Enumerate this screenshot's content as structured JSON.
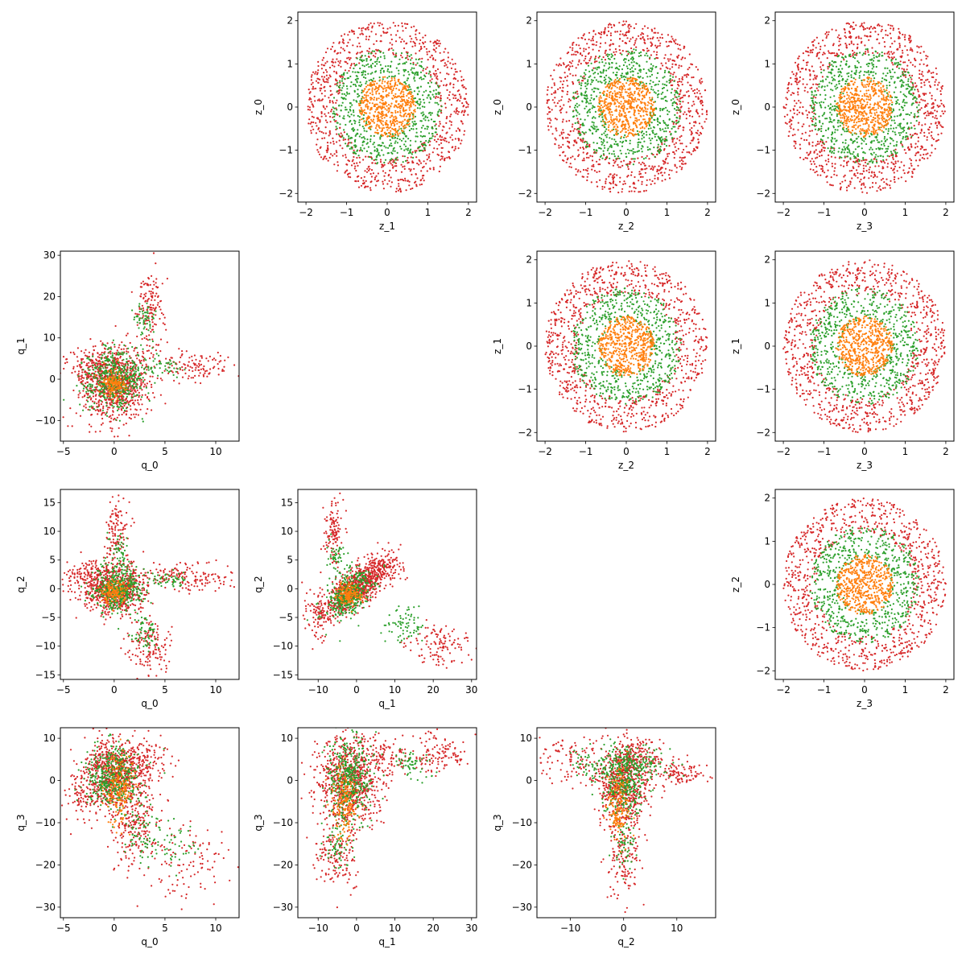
{
  "chart_data": [
    {
      "type": "scatter",
      "row": 0,
      "col": 1,
      "xlabel": "z_1",
      "ylabel": "z_0",
      "xlim": [
        -2.2,
        2.2
      ],
      "ylim": [
        -2.2,
        2.2
      ],
      "xticks": [
        -2,
        -1,
        0,
        1,
        2
      ],
      "yticks": [
        -2,
        -1,
        0,
        1,
        2
      ],
      "series": [
        {
          "color": "#d62728",
          "kind": "annulus",
          "r_in": 1.2,
          "r_out": 2.0,
          "n": 900
        },
        {
          "color": "#2ca02c",
          "kind": "annulus",
          "r_in": 0.6,
          "r_out": 1.35,
          "n": 650
        },
        {
          "color": "#ff7f0e",
          "kind": "disk",
          "r_out": 0.7,
          "n": 550
        }
      ]
    },
    {
      "type": "scatter",
      "row": 0,
      "col": 2,
      "xlabel": "z_2",
      "ylabel": "z_0",
      "xlim": [
        -2.2,
        2.2
      ],
      "ylim": [
        -2.2,
        2.2
      ],
      "xticks": [
        -2,
        -1,
        0,
        1,
        2
      ],
      "yticks": [
        -2,
        -1,
        0,
        1,
        2
      ],
      "series": [
        {
          "color": "#d62728",
          "kind": "annulus",
          "r_in": 1.2,
          "r_out": 2.0,
          "n": 900
        },
        {
          "color": "#2ca02c",
          "kind": "annulus",
          "r_in": 0.6,
          "r_out": 1.35,
          "n": 650
        },
        {
          "color": "#ff7f0e",
          "kind": "disk",
          "r_out": 0.7,
          "n": 550
        }
      ]
    },
    {
      "type": "scatter",
      "row": 0,
      "col": 3,
      "xlabel": "z_3",
      "ylabel": "z_0",
      "xlim": [
        -2.2,
        2.2
      ],
      "ylim": [
        -2.2,
        2.2
      ],
      "xticks": [
        -2,
        -1,
        0,
        1,
        2
      ],
      "yticks": [
        -2,
        -1,
        0,
        1,
        2
      ],
      "series": [
        {
          "color": "#d62728",
          "kind": "annulus",
          "r_in": 1.2,
          "r_out": 2.0,
          "n": 900
        },
        {
          "color": "#2ca02c",
          "kind": "annulus",
          "r_in": 0.6,
          "r_out": 1.35,
          "n": 650
        },
        {
          "color": "#ff7f0e",
          "kind": "disk",
          "r_out": 0.7,
          "n": 550
        }
      ]
    },
    {
      "type": "scatter",
      "row": 1,
      "col": 2,
      "xlabel": "z_2",
      "ylabel": "z_1",
      "xlim": [
        -2.2,
        2.2
      ],
      "ylim": [
        -2.2,
        2.2
      ],
      "xticks": [
        -2,
        -1,
        0,
        1,
        2
      ],
      "yticks": [
        -2,
        -1,
        0,
        1,
        2
      ],
      "series": [
        {
          "color": "#d62728",
          "kind": "annulus",
          "r_in": 1.2,
          "r_out": 2.0,
          "n": 900
        },
        {
          "color": "#2ca02c",
          "kind": "annulus",
          "r_in": 0.6,
          "r_out": 1.35,
          "n": 650
        },
        {
          "color": "#ff7f0e",
          "kind": "disk",
          "r_out": 0.7,
          "n": 550
        }
      ]
    },
    {
      "type": "scatter",
      "row": 1,
      "col": 3,
      "xlabel": "z_3",
      "ylabel": "z_1",
      "xlim": [
        -2.2,
        2.2
      ],
      "ylim": [
        -2.2,
        2.2
      ],
      "xticks": [
        -2,
        -1,
        0,
        1,
        2
      ],
      "yticks": [
        -2,
        -1,
        0,
        1,
        2
      ],
      "series": [
        {
          "color": "#d62728",
          "kind": "annulus",
          "r_in": 1.2,
          "r_out": 2.0,
          "n": 900
        },
        {
          "color": "#2ca02c",
          "kind": "annulus",
          "r_in": 0.6,
          "r_out": 1.35,
          "n": 650
        },
        {
          "color": "#ff7f0e",
          "kind": "disk",
          "r_out": 0.7,
          "n": 550
        }
      ]
    },
    {
      "type": "scatter",
      "row": 2,
      "col": 3,
      "xlabel": "z_3",
      "ylabel": "z_2",
      "xlim": [
        -2.2,
        2.2
      ],
      "ylim": [
        -2.2,
        2.2
      ],
      "xticks": [
        -2,
        -1,
        0,
        1,
        2
      ],
      "yticks": [
        -2,
        -1,
        0,
        1,
        2
      ],
      "series": [
        {
          "color": "#d62728",
          "kind": "annulus",
          "r_in": 1.2,
          "r_out": 2.0,
          "n": 900
        },
        {
          "color": "#2ca02c",
          "kind": "annulus",
          "r_in": 0.6,
          "r_out": 1.35,
          "n": 650
        },
        {
          "color": "#ff7f0e",
          "kind": "disk",
          "r_out": 0.7,
          "n": 550
        }
      ]
    },
    {
      "type": "scatter",
      "row": 1,
      "col": 0,
      "xlabel": "q_0",
      "ylabel": "q_1",
      "xlim": [
        -5.3,
        12.3
      ],
      "ylim": [
        -15,
        31
      ],
      "xticks": [
        -5,
        0,
        5,
        10
      ],
      "yticks": [
        -10,
        0,
        10,
        20,
        30
      ],
      "series": [
        {
          "color": "#d62728",
          "kind": "blobs",
          "clusters": [
            {
              "cx": 0,
              "cy": -1,
              "sx": 1.8,
              "sy": 4.5,
              "n": 800
            },
            {
              "cx": 3.5,
              "cy": 18,
              "sx": 0.7,
              "sy": 5,
              "n": 140
            },
            {
              "cx": 8,
              "cy": 3,
              "sx": 2,
              "sy": 2,
              "n": 120
            },
            {
              "cx": -2,
              "cy": 3,
              "sx": 1.5,
              "sy": 3,
              "n": 150
            }
          ]
        },
        {
          "color": "#2ca02c",
          "kind": "blobs",
          "clusters": [
            {
              "cx": 0,
              "cy": 0,
              "sx": 1.5,
              "sy": 3.5,
              "n": 500
            },
            {
              "cx": 3,
              "cy": 14,
              "sx": 0.6,
              "sy": 3,
              "n": 60
            },
            {
              "cx": 5,
              "cy": 3,
              "sx": 1.2,
              "sy": 1.5,
              "n": 40
            }
          ]
        },
        {
          "color": "#ff7f0e",
          "kind": "blobs",
          "clusters": [
            {
              "cx": 0,
              "cy": -1,
              "sx": 0.6,
              "sy": 1.5,
              "n": 150
            }
          ]
        }
      ]
    },
    {
      "type": "scatter",
      "row": 2,
      "col": 0,
      "xlabel": "q_0",
      "ylabel": "q_2",
      "xlim": [
        -5.3,
        12.3
      ],
      "ylim": [
        -15.8,
        17.3
      ],
      "xticks": [
        -5,
        0,
        5,
        10
      ],
      "yticks": [
        -15,
        -10,
        -5,
        0,
        5,
        10,
        15
      ],
      "series": [
        {
          "color": "#d62728",
          "kind": "blobs",
          "clusters": [
            {
              "cx": 0,
              "cy": 0,
              "sx": 1.5,
              "sy": 2.2,
              "n": 700
            },
            {
              "cx": 0.2,
              "cy": 10,
              "sx": 0.6,
              "sy": 3,
              "n": 120
            },
            {
              "cx": 3.5,
              "cy": -10,
              "sx": 1,
              "sy": 2.5,
              "n": 150
            },
            {
              "cx": 7,
              "cy": 2,
              "sx": 2.3,
              "sy": 1.2,
              "n": 160
            },
            {
              "cx": -3,
              "cy": 2,
              "sx": 1,
              "sy": 1.5,
              "n": 100
            }
          ]
        },
        {
          "color": "#2ca02c",
          "kind": "blobs",
          "clusters": [
            {
              "cx": 0.5,
              "cy": 0,
              "sx": 1.2,
              "sy": 2,
              "n": 450
            },
            {
              "cx": 0.5,
              "cy": 7,
              "sx": 0.4,
              "sy": 1.5,
              "n": 40
            },
            {
              "cx": 3,
              "cy": -8,
              "sx": 0.6,
              "sy": 1.5,
              "n": 60
            },
            {
              "cx": 5,
              "cy": 1.5,
              "sx": 1,
              "sy": 0.8,
              "n": 50
            }
          ]
        },
        {
          "color": "#ff7f0e",
          "kind": "blobs",
          "clusters": [
            {
              "cx": 0,
              "cy": -0.5,
              "sx": 0.6,
              "sy": 1,
              "n": 150
            }
          ]
        }
      ]
    },
    {
      "type": "scatter",
      "row": 2,
      "col": 1,
      "xlabel": "q_1",
      "ylabel": "q_2",
      "xlim": [
        -15.3,
        31.3
      ],
      "ylim": [
        -15.8,
        17.3
      ],
      "xticks": [
        -10,
        0,
        10,
        20,
        30
      ],
      "yticks": [
        -15,
        -10,
        -5,
        0,
        5,
        10,
        15
      ],
      "series": [
        {
          "color": "#d62728",
          "kind": "blobs",
          "clusters": [
            {
              "cx": 0,
              "cy": 0,
              "sx": 4,
              "sy": 2.2,
              "corr": 0.7,
              "n": 750
            },
            {
              "cx": -6,
              "cy": 10,
              "sx": 1.3,
              "sy": 3,
              "n": 120
            },
            {
              "cx": 22,
              "cy": -10,
              "sx": 4,
              "sy": 2,
              "n": 120
            },
            {
              "cx": 6,
              "cy": 4,
              "sx": 3,
              "sy": 1.5,
              "n": 150
            },
            {
              "cx": -10,
              "cy": -4,
              "sx": 2,
              "sy": 2,
              "n": 100
            }
          ]
        },
        {
          "color": "#2ca02c",
          "kind": "blobs",
          "clusters": [
            {
              "cx": -2,
              "cy": -1,
              "sx": 3,
              "sy": 2,
              "corr": 0.5,
              "n": 400
            },
            {
              "cx": -5,
              "cy": 5,
              "sx": 1.5,
              "sy": 1.5,
              "n": 50
            },
            {
              "cx": 12,
              "cy": -6,
              "sx": 3,
              "sy": 1.5,
              "n": 70
            }
          ]
        },
        {
          "color": "#ff7f0e",
          "kind": "blobs",
          "clusters": [
            {
              "cx": -2,
              "cy": -1,
              "sx": 1.5,
              "sy": 1,
              "n": 150
            }
          ]
        }
      ]
    },
    {
      "type": "scatter",
      "row": 3,
      "col": 0,
      "xlabel": "q_0",
      "ylabel": "q_3",
      "xlim": [
        -5.3,
        12.3
      ],
      "ylim": [
        -32.5,
        12.5
      ],
      "xticks": [
        -5,
        0,
        5,
        10
      ],
      "yticks": [
        -30,
        -20,
        -10,
        0,
        10
      ],
      "series": [
        {
          "color": "#d62728",
          "kind": "blobs",
          "clusters": [
            {
              "cx": 0,
              "cy": 2,
              "sx": 1.5,
              "sy": 4,
              "n": 650
            },
            {
              "cx": 2,
              "cy": -10,
              "sx": 1.2,
              "sy": 5,
              "n": 250
            },
            {
              "cx": 8,
              "cy": -20,
              "sx": 2,
              "sy": 5,
              "n": 100
            },
            {
              "cx": 3,
              "cy": 5,
              "sx": 1.5,
              "sy": 3,
              "n": 120
            },
            {
              "cx": -3,
              "cy": -3,
              "sx": 1,
              "sy": 3,
              "n": 100
            }
          ]
        },
        {
          "color": "#2ca02c",
          "kind": "blobs",
          "clusters": [
            {
              "cx": 0,
              "cy": 1,
              "sx": 1.3,
              "sy": 3.5,
              "n": 420
            },
            {
              "cx": 3,
              "cy": -12,
              "sx": 1,
              "sy": 4,
              "n": 80
            },
            {
              "cx": 6,
              "cy": -15,
              "sx": 1,
              "sy": 3,
              "n": 40
            }
          ]
        },
        {
          "color": "#ff7f0e",
          "kind": "blobs",
          "clusters": [
            {
              "cx": 0.5,
              "cy": -2,
              "sx": 0.7,
              "sy": 4,
              "n": 180
            }
          ]
        }
      ]
    },
    {
      "type": "scatter",
      "row": 3,
      "col": 1,
      "xlabel": "q_1",
      "ylabel": "q_3",
      "xlim": [
        -15.3,
        31.3
      ],
      "ylim": [
        -32.5,
        12.5
      ],
      "xticks": [
        -10,
        0,
        10,
        20,
        30
      ],
      "yticks": [
        -30,
        -20,
        -10,
        0,
        10
      ],
      "series": [
        {
          "color": "#d62728",
          "kind": "blobs",
          "clusters": [
            {
              "cx": -2,
              "cy": 0,
              "sx": 4,
              "sy": 5,
              "n": 750
            },
            {
              "cx": 22,
              "cy": 6,
              "sx": 4,
              "sy": 2.5,
              "n": 120
            },
            {
              "cx": -5,
              "cy": -18,
              "sx": 3,
              "sy": 4,
              "n": 150
            },
            {
              "cx": 8,
              "cy": 6,
              "sx": 3,
              "sy": 2,
              "n": 100
            }
          ]
        },
        {
          "color": "#2ca02c",
          "kind": "blobs",
          "clusters": [
            {
              "cx": -2,
              "cy": 0,
              "sx": 3,
              "sy": 5,
              "n": 420
            },
            {
              "cx": -5,
              "cy": -15,
              "sx": 2,
              "sy": 3,
              "n": 60
            },
            {
              "cx": 14,
              "cy": 4,
              "sx": 3,
              "sy": 2,
              "n": 60
            }
          ]
        },
        {
          "color": "#ff7f0e",
          "kind": "blobs",
          "clusters": [
            {
              "cx": -3,
              "cy": -5,
              "sx": 1.5,
              "sy": 4,
              "n": 160
            }
          ]
        }
      ]
    },
    {
      "type": "scatter",
      "row": 3,
      "col": 2,
      "xlabel": "q_2",
      "ylabel": "q_3",
      "xlim": [
        -16.3,
        17.3
      ],
      "ylim": [
        -32.5,
        12.5
      ],
      "xticks": [
        -10,
        0,
        10
      ],
      "yticks": [
        -30,
        -20,
        -10,
        0,
        10
      ],
      "series": [
        {
          "color": "#d62728",
          "kind": "blobs",
          "clusters": [
            {
              "cx": 0,
              "cy": 0,
              "sx": 2.5,
              "sy": 5,
              "n": 650
            },
            {
              "cx": 0,
              "cy": -18,
              "sx": 1.5,
              "sy": 5,
              "n": 150
            },
            {
              "cx": -10,
              "cy": 5,
              "sx": 3,
              "sy": 3,
              "n": 100
            },
            {
              "cx": 11,
              "cy": 2,
              "sx": 3,
              "sy": 1.5,
              "n": 100
            },
            {
              "cx": 4,
              "cy": 6,
              "sx": 2,
              "sy": 2,
              "n": 100
            }
          ]
        },
        {
          "color": "#2ca02c",
          "kind": "blobs",
          "clusters": [
            {
              "cx": 0,
              "cy": 0,
              "sx": 2,
              "sy": 4,
              "n": 400
            },
            {
              "cx": 0,
              "cy": -15,
              "sx": 1,
              "sy": 3,
              "n": 60
            },
            {
              "cx": -6,
              "cy": 4,
              "sx": 2,
              "sy": 2,
              "n": 50
            },
            {
              "cx": 5,
              "cy": 4,
              "sx": 2,
              "sy": 2,
              "n": 60
            }
          ]
        },
        {
          "color": "#ff7f0e",
          "kind": "blobs",
          "clusters": [
            {
              "cx": -1,
              "cy": -6,
              "sx": 1,
              "sy": 4,
              "n": 160
            }
          ]
        }
      ]
    }
  ]
}
